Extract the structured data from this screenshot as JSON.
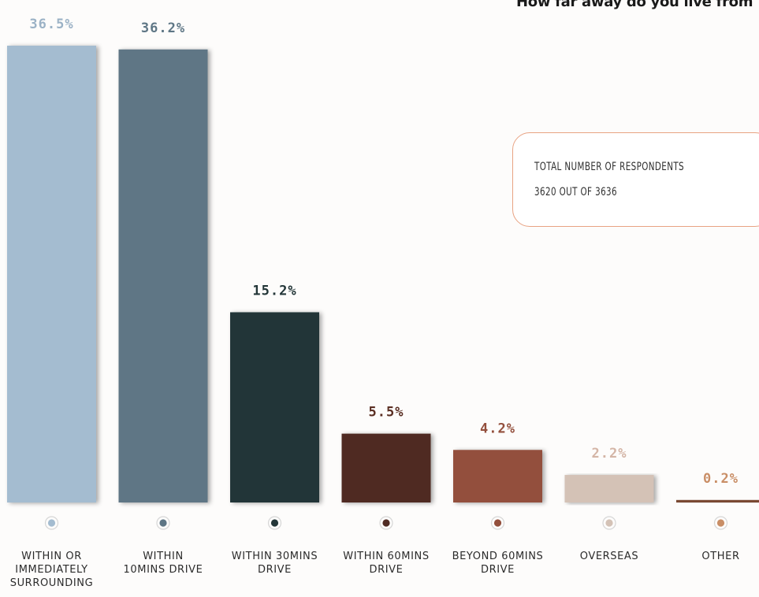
{
  "title": "How far away do you live from",
  "note": {
    "line1": "TOTAL NUMBER OF RESPONDENTS",
    "line2": "3620 OUT OF 3636"
  },
  "chart_data": {
    "type": "bar",
    "title": "How far away do you live from",
    "categories": [
      [
        "WITHIN OR",
        "IMMEDIATELY",
        "SURROUNDING"
      ],
      [
        "WITHIN",
        "10MINS DRIVE"
      ],
      [
        "WITHIN 30MINS",
        "DRIVE"
      ],
      [
        "WITHIN 60MINS",
        "DRIVE"
      ],
      [
        "BEYOND 60MINS",
        "DRIVE"
      ],
      [
        "OVERSEAS"
      ],
      [
        "OTHER"
      ]
    ],
    "values": [
      36.5,
      36.2,
      15.2,
      5.5,
      4.2,
      2.2,
      0.2
    ],
    "value_labels": [
      "36.5%",
      "36.2%",
      "15.2%",
      "5.5%",
      "4.2%",
      "2.2%",
      "0.2%"
    ],
    "bar_colors": [
      "#a4bcd0",
      "#5e7685",
      "#233638",
      "#4f2b23",
      "#934f3c",
      "#d4c2b6",
      "#7a4a30"
    ],
    "label_colors": [
      "#9bb2c6",
      "#5e7685",
      "#233638",
      "#5a2e22",
      "#934f3c",
      "#d4b5a6",
      "#c98e66"
    ],
    "dot_colors": [
      "#a4bcd0",
      "#5e7685",
      "#233638",
      "#4f2b23",
      "#934f3c",
      "#d4c2b6",
      "#c98e66"
    ],
    "ylim": [
      0,
      36.5
    ],
    "grid": false,
    "legend": "none"
  }
}
